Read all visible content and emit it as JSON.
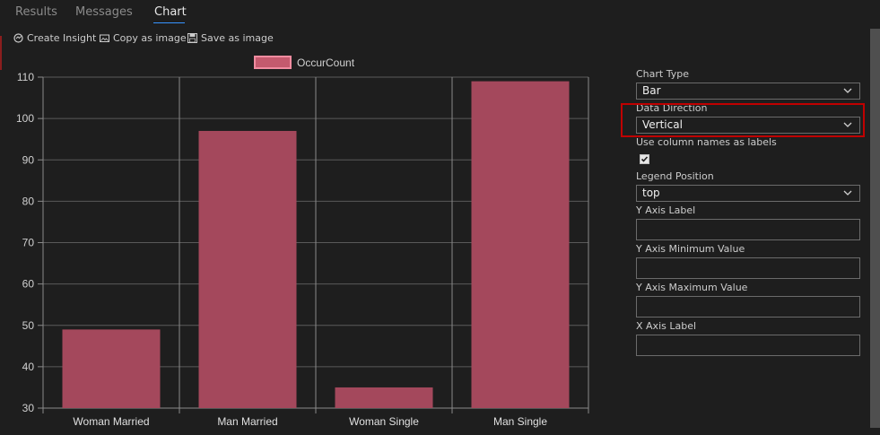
{
  "tabs": [
    {
      "label": "Results"
    },
    {
      "label": "Messages"
    },
    {
      "label": "Chart",
      "active": true
    }
  ],
  "toolbar": {
    "create_insight": "Create Insight",
    "copy_as_image": "Copy as image",
    "save_as_image": "Save as image"
  },
  "colors": {
    "bar_fill": "#a4485c",
    "legend_fill": "#c45a6e",
    "legend_border": "#f08ca0",
    "highlight_border": "#c00000",
    "tab_underline": "#3794ff"
  },
  "chart_data": {
    "type": "bar",
    "categories": [
      "Woman Married",
      "Man Married",
      "Woman Single",
      "Man Single"
    ],
    "series": [
      {
        "name": "OccurCount",
        "values": [
          49,
          97,
          35,
          109
        ]
      }
    ],
    "y_ticks": [
      "30",
      "40",
      "50",
      "60",
      "70",
      "80",
      "90",
      "100",
      "110"
    ],
    "ylim": [
      30,
      110
    ],
    "legend_position": "top",
    "grid": true
  },
  "settings": {
    "chart_type": {
      "label": "Chart Type",
      "value": "Bar"
    },
    "data_direction": {
      "label": "Data Direction",
      "value": "Vertical"
    },
    "use_column_names": {
      "label": "Use column names as labels",
      "checked": true
    },
    "legend_position": {
      "label": "Legend Position",
      "value": "top"
    },
    "y_axis_label": {
      "label": "Y Axis Label",
      "value": ""
    },
    "y_axis_min": {
      "label": "Y Axis Minimum Value",
      "value": ""
    },
    "y_axis_max": {
      "label": "Y Axis Maximum Value",
      "value": ""
    },
    "x_axis_label": {
      "label": "X Axis Label",
      "value": ""
    }
  },
  "icons": {
    "create_insight": "insight-icon",
    "copy_as_image": "copy-image-icon",
    "save_as_image": "save-image-icon",
    "dropdown": "chevron-down-icon",
    "checkbox": "checkmark-icon"
  }
}
